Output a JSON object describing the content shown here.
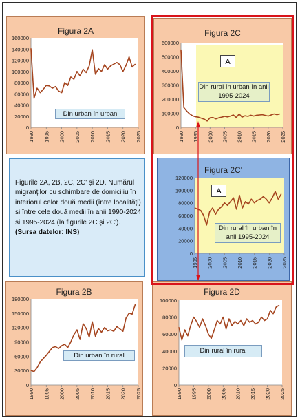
{
  "caption": {
    "text": "Figurile 2A, 2B, 2C, 2C' și 2D. Numărul migranților cu schimbare de domiciliu în interiorul celor două medii (între localități) și între cele două medii în anii 1990-2024 și 1995-2024 (la figurile 2C și 2C').",
    "source": "(Sursa datelor: INS)"
  },
  "colors": {
    "line": "#a5451f",
    "highlight": "#d9141b",
    "panel_orange": "#f8c9a7",
    "panel_blue": "#8fb4e3",
    "caption_bg": "#d9ebf8",
    "yellow": "#fbf8b4",
    "green_label": "#e6f0c8"
  },
  "chart_data": [
    {
      "id": "2A",
      "type": "line",
      "title": "Figura 2A",
      "label": "Din urban în urban",
      "xlim": [
        1990,
        2025
      ],
      "ylim": [
        0,
        160000
      ],
      "xticks": [
        "1990",
        "1995",
        "2000",
        "2005",
        "2010",
        "2015",
        "2020",
        "2025"
      ],
      "yticks": [
        "0",
        "20000",
        "40000",
        "60000",
        "80000",
        "100000",
        "120000",
        "140000",
        "160000"
      ],
      "x": [
        1990,
        1991,
        1992,
        1993,
        1994,
        1995,
        1996,
        1997,
        1998,
        1999,
        2000,
        2001,
        2002,
        2003,
        2004,
        2005,
        2006,
        2007,
        2008,
        2009,
        2010,
        2011,
        2012,
        2013,
        2014,
        2015,
        2016,
        2017,
        2018,
        2019,
        2020,
        2021,
        2022,
        2023,
        2024
      ],
      "y": [
        141000,
        52000,
        70000,
        62000,
        68000,
        75000,
        74000,
        70000,
        73000,
        65000,
        62000,
        80000,
        75000,
        90000,
        86000,
        100000,
        92000,
        104000,
        98000,
        110000,
        139000,
        95000,
        105000,
        100000,
        112000,
        104000,
        110000,
        113000,
        116000,
        112000,
        100000,
        111000,
        126000,
        108000,
        113000
      ]
    },
    {
      "id": "2B",
      "type": "line",
      "title": "Figura 2B",
      "label": "Din urban în rural",
      "xlim": [
        1990,
        2025
      ],
      "ylim": [
        0,
        180000
      ],
      "xticks": [
        "1990",
        "1995",
        "2000",
        "2005",
        "2010",
        "2015",
        "2020",
        "2025"
      ],
      "yticks": [
        "0",
        "30000",
        "60000",
        "90000",
        "120000",
        "150000",
        "180000"
      ],
      "x": [
        1990,
        1991,
        1992,
        1993,
        1994,
        1995,
        1996,
        1997,
        1998,
        1999,
        2000,
        2001,
        2002,
        2003,
        2004,
        2005,
        2006,
        2007,
        2008,
        2009,
        2010,
        2011,
        2012,
        2013,
        2014,
        2015,
        2016,
        2017,
        2018,
        2019,
        2020,
        2021,
        2022,
        2023,
        2024
      ],
      "y": [
        30000,
        28000,
        36000,
        48000,
        55000,
        62000,
        70000,
        78000,
        80000,
        76000,
        82000,
        85000,
        78000,
        90000,
        105000,
        115000,
        95000,
        128000,
        118000,
        100000,
        132000,
        102000,
        118000,
        110000,
        120000,
        113000,
        115000,
        112000,
        122000,
        117000,
        112000,
        140000,
        150000,
        148000,
        168000
      ]
    },
    {
      "id": "2C",
      "type": "line",
      "title": "Figura 2C",
      "label": "Din rural în urban în anii 1995-2024",
      "marker": "A",
      "xlim": [
        1990,
        2025
      ],
      "ylim": [
        0,
        600000
      ],
      "xticks": [
        "1990",
        "1995",
        "2000",
        "2005",
        "2010",
        "2015",
        "2020",
        "2025"
      ],
      "yticks": [
        "0",
        "100000",
        "200000",
        "300000",
        "400000",
        "500000",
        "600000"
      ],
      "x": [
        1990,
        1991,
        1992,
        1993,
        1994,
        1995,
        1996,
        1997,
        1998,
        1999,
        2000,
        2001,
        2002,
        2003,
        2004,
        2005,
        2006,
        2007,
        2008,
        2009,
        2010,
        2011,
        2012,
        2013,
        2014,
        2015,
        2016,
        2017,
        2018,
        2019,
        2020,
        2021,
        2022,
        2023,
        2024
      ],
      "y": [
        550000,
        140000,
        115000,
        95000,
        82000,
        75000,
        72000,
        65000,
        58000,
        45000,
        68000,
        70000,
        60000,
        68000,
        72000,
        78000,
        74000,
        80000,
        88000,
        70000,
        95000,
        72000,
        82000,
        78000,
        86000,
        80000,
        86000,
        88000,
        90000,
        85000,
        80000,
        88000,
        95000,
        90000,
        95000
      ]
    },
    {
      "id": "2C'",
      "type": "line",
      "title": "Figura 2C'",
      "label": "Din rural în urban în anii 1995-2024",
      "marker": "A",
      "xlim": [
        1995,
        2025
      ],
      "ylim": [
        0,
        120000
      ],
      "xticks": [
        "1995",
        "2000",
        "2005",
        "2010",
        "2015",
        "2020",
        "2025"
      ],
      "yticks": [
        "0",
        "20000",
        "40000",
        "60000",
        "80000",
        "100000",
        "120000"
      ],
      "x": [
        1995,
        1996,
        1997,
        1998,
        1999,
        2000,
        2001,
        2002,
        2003,
        2004,
        2005,
        2006,
        2007,
        2008,
        2009,
        2010,
        2011,
        2012,
        2013,
        2014,
        2015,
        2016,
        2017,
        2018,
        2019,
        2020,
        2021,
        2022,
        2023,
        2024
      ],
      "y": [
        72000,
        70000,
        68000,
        60000,
        45000,
        66000,
        72000,
        62000,
        70000,
        74000,
        80000,
        76000,
        82000,
        88000,
        70000,
        92000,
        72000,
        82000,
        78000,
        86000,
        80000,
        84000,
        86000,
        90000,
        86000,
        80000,
        88000,
        98000,
        86000,
        94000
      ]
    },
    {
      "id": "2D",
      "type": "line",
      "title": "Figura 2D",
      "label": "Din rural în rural",
      "xlim": [
        1990,
        2025
      ],
      "ylim": [
        0,
        100000
      ],
      "xticks": [
        "1990",
        "1995",
        "2000",
        "2005",
        "2010",
        "2015",
        "2020",
        "2025"
      ],
      "yticks": [
        "0",
        "20000",
        "40000",
        "60000",
        "80000",
        "100000"
      ],
      "x": [
        1990,
        1991,
        1992,
        1993,
        1994,
        1995,
        1996,
        1997,
        1998,
        1999,
        2000,
        2001,
        2002,
        2003,
        2004,
        2005,
        2006,
        2007,
        2008,
        2009,
        2010,
        2011,
        2012,
        2013,
        2014,
        2015,
        2016,
        2017,
        2018,
        2019,
        2020,
        2021,
        2022,
        2023,
        2024
      ],
      "y": [
        68000,
        53000,
        65000,
        58000,
        70000,
        80000,
        75000,
        68000,
        78000,
        70000,
        60000,
        55000,
        65000,
        76000,
        72000,
        80000,
        66000,
        78000,
        70000,
        75000,
        72000,
        76000,
        70000,
        78000,
        74000,
        76000,
        72000,
        74000,
        80000,
        76000,
        78000,
        88000,
        84000,
        92000,
        94000
      ]
    }
  ]
}
